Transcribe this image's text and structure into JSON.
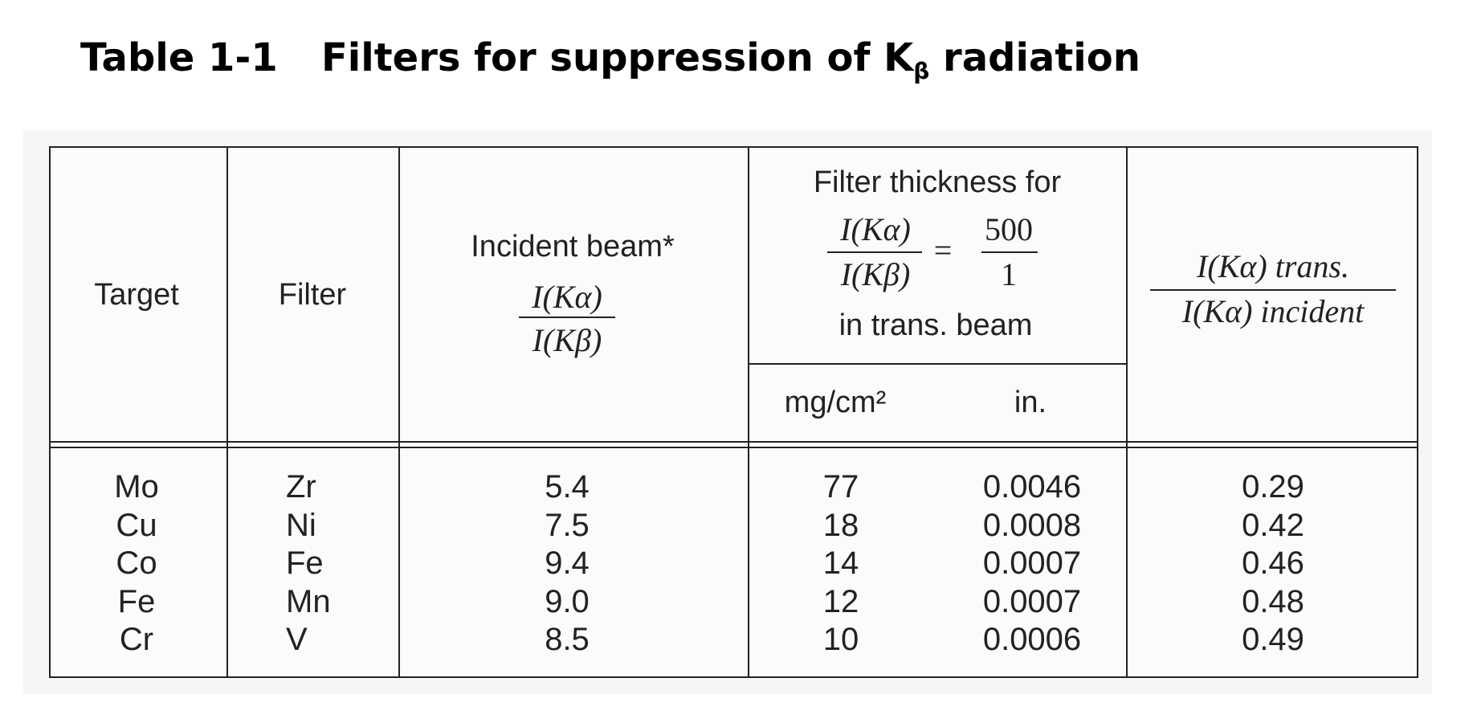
{
  "title": {
    "number": "Table 1-1",
    "text": "Filters for suppression of K",
    "subscript": "β",
    "text_after": " radiation"
  },
  "headers": {
    "target": "Target",
    "filter": "Filter",
    "incident": {
      "label": "Incident beam*",
      "numerator": "I(Kα)",
      "denominator": "I(Kβ)"
    },
    "thickness": {
      "label": "Filter thickness for",
      "numerator": "I(Kα)",
      "denominator": "I(Kβ)",
      "equals": "=",
      "ratio_num": "500",
      "ratio_den": "1",
      "footer": "in trans. beam",
      "unit_mass": "mg/cm²",
      "unit_in": "in."
    },
    "transmission": {
      "numerator": "I(Kα) trans.",
      "denominator": "I(Kα) incident"
    }
  },
  "rows": [
    {
      "target": "Mo",
      "filter": "Zr",
      "incident": "5.4",
      "mg": "77",
      "in": "0.0046",
      "trans": "0.29"
    },
    {
      "target": "Cu",
      "filter": "Ni",
      "incident": "7.5",
      "mg": "18",
      "in": "0.0008",
      "trans": "0.42"
    },
    {
      "target": "Co",
      "filter": "Fe",
      "incident": "9.4",
      "mg": "14",
      "in": "0.0007",
      "trans": "0.46"
    },
    {
      "target": "Fe",
      "filter": "Mn",
      "incident": "9.0",
      "mg": "12",
      "in": "0.0007",
      "trans": "0.48"
    },
    {
      "target": "Cr",
      "filter": "V",
      "incident": "8.5",
      "mg": "10",
      "in": "0.0006",
      "trans": "0.49"
    }
  ]
}
